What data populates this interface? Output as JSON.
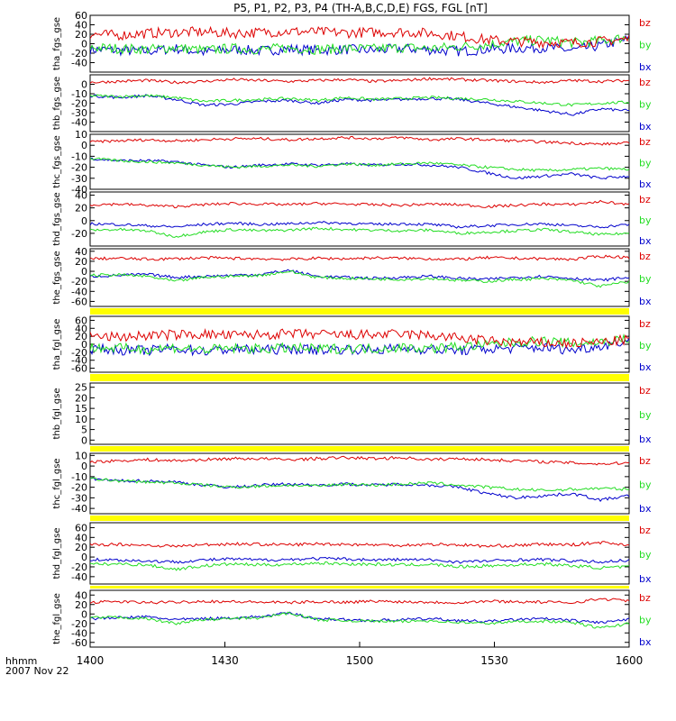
{
  "title": "P5, P1, P2, P3, P4 (TH-A,B,C,D,E) FGS, FGL [nT]",
  "footer": {
    "time_label": "hhmm",
    "date_label": "2007 Nov 22"
  },
  "x_ticks": [
    "1400",
    "1430",
    "1500",
    "1530",
    "1600"
  ],
  "chart_data": [
    {
      "type": "line",
      "ylabel": "tha_fgs_gse",
      "ylim": [
        -60,
        60
      ],
      "y_ticks": [
        60,
        40,
        20,
        0,
        -20,
        -40
      ],
      "xlim": [
        "14:00",
        "16:00"
      ],
      "series": [
        {
          "name": "bz",
          "color": "#dd0000",
          "values": [
            20,
            18,
            22,
            24,
            25,
            22,
            24,
            26,
            25,
            23,
            24,
            25,
            22,
            16,
            8,
            5,
            3,
            2,
            5,
            10
          ]
        },
        {
          "name": "by",
          "color": "#22dd22",
          "values": [
            -8,
            -10,
            -12,
            -8,
            -14,
            -10,
            -12,
            -9,
            -12,
            -10,
            -11,
            -8,
            -10,
            -6,
            -2,
            5,
            8,
            2,
            6,
            14
          ]
        },
        {
          "name": "bx",
          "color": "#0000cc",
          "values": [
            -12,
            -14,
            -16,
            -10,
            -18,
            -12,
            -15,
            -11,
            -14,
            -12,
            -14,
            -10,
            -13,
            -16,
            -12,
            -10,
            -8,
            -14,
            -4,
            10
          ]
        }
      ]
    },
    {
      "type": "line",
      "ylabel": "thb_fgs_gse",
      "ylim": [
        -50,
        10
      ],
      "y_ticks": [
        0,
        -10,
        -20,
        -30,
        -40
      ],
      "xlim": [
        "14:00",
        "16:00"
      ],
      "series": [
        {
          "name": "bz",
          "color": "#dd0000",
          "values": [
            2,
            3,
            4,
            2,
            3,
            5,
            4,
            3,
            4,
            5,
            3,
            4,
            6,
            5,
            4,
            3,
            2,
            4,
            3,
            4
          ]
        },
        {
          "name": "by",
          "color": "#22dd22",
          "values": [
            -12,
            -13,
            -12,
            -14,
            -18,
            -17,
            -16,
            -15,
            -17,
            -14,
            -16,
            -15,
            -14,
            -15,
            -16,
            -18,
            -20,
            -22,
            -20,
            -19
          ]
        },
        {
          "name": "bx",
          "color": "#0000cc",
          "values": [
            -12,
            -14,
            -12,
            -16,
            -22,
            -21,
            -18,
            -17,
            -20,
            -16,
            -17,
            -16,
            -15,
            -16,
            -20,
            -24,
            -28,
            -32,
            -26,
            -28
          ]
        }
      ]
    },
    {
      "type": "line",
      "ylabel": "thc_fgs_gse",
      "ylim": [
        -40,
        10
      ],
      "y_ticks": [
        10,
        0,
        -10,
        -20,
        -30,
        -40
      ],
      "xlim": [
        "14:00",
        "16:00"
      ],
      "series": [
        {
          "name": "bz",
          "color": "#dd0000",
          "values": [
            3,
            4,
            5,
            4,
            5,
            6,
            6,
            5,
            6,
            7,
            6,
            7,
            5,
            6,
            5,
            4,
            3,
            2,
            1,
            2
          ]
        },
        {
          "name": "by",
          "color": "#22dd22",
          "values": [
            -12,
            -14,
            -15,
            -16,
            -18,
            -20,
            -19,
            -18,
            -19,
            -17,
            -18,
            -17,
            -16,
            -18,
            -20,
            -22,
            -23,
            -22,
            -21,
            -22
          ]
        },
        {
          "name": "bx",
          "color": "#0000cc",
          "values": [
            -12,
            -14,
            -14,
            -15,
            -18,
            -20,
            -18,
            -17,
            -18,
            -17,
            -18,
            -17,
            -18,
            -20,
            -25,
            -30,
            -28,
            -26,
            -30,
            -28
          ]
        }
      ]
    },
    {
      "type": "line",
      "ylabel": "thd_fgs_gse",
      "ylim": [
        -40,
        45
      ],
      "y_ticks": [
        40,
        20,
        0,
        -20
      ],
      "xlim": [
        "14:00",
        "16:00"
      ],
      "series": [
        {
          "name": "bz",
          "color": "#dd0000",
          "values": [
            25,
            26,
            24,
            22,
            25,
            27,
            26,
            25,
            27,
            26,
            25,
            24,
            26,
            25,
            22,
            24,
            26,
            25,
            30,
            25
          ]
        },
        {
          "name": "by",
          "color": "#22dd22",
          "values": [
            -15,
            -14,
            -16,
            -25,
            -18,
            -14,
            -16,
            -15,
            -12,
            -14,
            -15,
            -16,
            -15,
            -20,
            -18,
            -16,
            -14,
            -18,
            -22,
            -20
          ]
        },
        {
          "name": "bx",
          "color": "#0000cc",
          "values": [
            -5,
            -6,
            -8,
            -10,
            -6,
            -4,
            -6,
            -5,
            -3,
            -4,
            -6,
            -5,
            -6,
            -10,
            -8,
            -6,
            -5,
            -8,
            -10,
            -6
          ]
        }
      ]
    },
    {
      "type": "line",
      "ylabel": "the_fgs_gse",
      "ylim": [
        -70,
        45
      ],
      "y_ticks": [
        40,
        20,
        0,
        -20,
        -40,
        -60
      ],
      "xlim": [
        "14:00",
        "16:00"
      ],
      "series": [
        {
          "name": "bz",
          "color": "#dd0000",
          "values": [
            25,
            26,
            24,
            25,
            27,
            26,
            25,
            24,
            26,
            25,
            27,
            26,
            25,
            24,
            27,
            26,
            25,
            24,
            30,
            28
          ]
        },
        {
          "name": "by",
          "color": "#22dd22",
          "values": [
            -8,
            -7,
            -10,
            -20,
            -12,
            -10,
            -8,
            0,
            -12,
            -14,
            -15,
            -16,
            -14,
            -18,
            -20,
            -16,
            -15,
            -18,
            -30,
            -20
          ]
        },
        {
          "name": "bx",
          "color": "#0000cc",
          "values": [
            -10,
            -8,
            -6,
            -12,
            -10,
            -8,
            -6,
            2,
            -10,
            -12,
            -14,
            -12,
            -10,
            -14,
            -16,
            -12,
            -10,
            -14,
            -18,
            -12
          ]
        }
      ]
    },
    {
      "type": "line",
      "ylabel": "tha_fgl_gse",
      "ylim": [
        -70,
        70
      ],
      "y_ticks": [
        60,
        40,
        20,
        0,
        -20,
        -40,
        -60
      ],
      "xlim": [
        "14:00",
        "16:00"
      ],
      "series": [
        {
          "name": "bz",
          "color": "#dd0000",
          "values": [
            20,
            18,
            22,
            24,
            25,
            22,
            24,
            26,
            25,
            23,
            24,
            25,
            22,
            16,
            8,
            5,
            3,
            2,
            5,
            12
          ]
        },
        {
          "name": "by",
          "color": "#22dd22",
          "values": [
            -8,
            -10,
            -12,
            -8,
            -14,
            -10,
            -12,
            -9,
            -12,
            -10,
            -11,
            -8,
            -10,
            -6,
            -2,
            5,
            8,
            2,
            6,
            14
          ]
        },
        {
          "name": "bx",
          "color": "#0000cc",
          "values": [
            -12,
            -14,
            -16,
            -10,
            -18,
            -12,
            -15,
            -11,
            -14,
            -12,
            -14,
            -10,
            -13,
            -16,
            -12,
            -10,
            -8,
            -14,
            -4,
            10
          ]
        }
      ]
    },
    {
      "type": "line",
      "ylabel": "thb_fgl_gse",
      "ylim": [
        -2,
        27
      ],
      "y_ticks": [
        25,
        20,
        15,
        10,
        5,
        0
      ],
      "xlim": [
        "14:00",
        "16:00"
      ],
      "series": [
        {
          "name": "bz",
          "color": "#dd0000",
          "values": []
        },
        {
          "name": "by",
          "color": "#22dd22",
          "values": []
        },
        {
          "name": "bx",
          "color": "#0000cc",
          "values": []
        }
      ]
    },
    {
      "type": "line",
      "ylabel": "thc_fgl_gse",
      "ylim": [
        -45,
        12
      ],
      "y_ticks": [
        10,
        0,
        -10,
        -20,
        -30,
        -40
      ],
      "xlim": [
        "14:00",
        "16:00"
      ],
      "series": [
        {
          "name": "bz",
          "color": "#dd0000",
          "values": [
            4,
            5,
            6,
            5,
            6,
            7,
            7,
            6,
            7,
            8,
            7,
            8,
            6,
            7,
            6,
            5,
            4,
            3,
            2,
            3
          ]
        },
        {
          "name": "by",
          "color": "#22dd22",
          "values": [
            -12,
            -14,
            -15,
            -16,
            -18,
            -20,
            -19,
            -18,
            -19,
            -17,
            -18,
            -17,
            -16,
            -18,
            -20,
            -22,
            -23,
            -22,
            -21,
            -22
          ]
        },
        {
          "name": "bx",
          "color": "#0000cc",
          "values": [
            -12,
            -14,
            -14,
            -15,
            -18,
            -20,
            -18,
            -17,
            -18,
            -17,
            -18,
            -17,
            -18,
            -20,
            -26,
            -30,
            -28,
            -26,
            -32,
            -28
          ]
        }
      ]
    },
    {
      "type": "line",
      "ylabel": "thd_fgl_gse",
      "ylim": [
        -55,
        70
      ],
      "y_ticks": [
        60,
        40,
        20,
        0,
        -20,
        -40
      ],
      "xlim": [
        "14:00",
        "16:00"
      ],
      "series": [
        {
          "name": "bz",
          "color": "#dd0000",
          "values": [
            25,
            26,
            24,
            22,
            25,
            27,
            26,
            25,
            27,
            26,
            25,
            24,
            26,
            25,
            22,
            24,
            26,
            25,
            30,
            25
          ]
        },
        {
          "name": "by",
          "color": "#22dd22",
          "values": [
            -15,
            -14,
            -16,
            -25,
            -18,
            -14,
            -16,
            -15,
            -12,
            -14,
            -15,
            -16,
            -15,
            -20,
            -18,
            -16,
            -14,
            -18,
            -22,
            -20
          ]
        },
        {
          "name": "bx",
          "color": "#0000cc",
          "values": [
            -5,
            -6,
            -8,
            -10,
            -6,
            -4,
            -6,
            -5,
            -3,
            -4,
            -6,
            -5,
            -6,
            -10,
            -8,
            -6,
            -5,
            -8,
            -10,
            -6
          ]
        }
      ]
    },
    {
      "type": "line",
      "ylabel": "the_fgl_gse",
      "ylim": [
        -70,
        50
      ],
      "y_ticks": [
        40,
        20,
        0,
        -20,
        -40,
        -60
      ],
      "xlim": [
        "14:00",
        "16:00"
      ],
      "series": [
        {
          "name": "bz",
          "color": "#dd0000",
          "values": [
            25,
            26,
            24,
            25,
            27,
            26,
            25,
            24,
            26,
            25,
            27,
            26,
            25,
            24,
            27,
            26,
            25,
            24,
            32,
            28
          ]
        },
        {
          "name": "by",
          "color": "#22dd22",
          "values": [
            -8,
            -7,
            -10,
            -20,
            -12,
            -10,
            -8,
            2,
            -12,
            -14,
            -15,
            -16,
            -14,
            -18,
            -20,
            -16,
            -15,
            -18,
            -30,
            -20
          ]
        },
        {
          "name": "bx",
          "color": "#0000cc",
          "values": [
            -10,
            -8,
            -6,
            -12,
            -10,
            -8,
            -6,
            2,
            -10,
            -12,
            -14,
            -12,
            -10,
            -14,
            -16,
            -12,
            -10,
            -14,
            -18,
            -12
          ]
        }
      ]
    }
  ]
}
